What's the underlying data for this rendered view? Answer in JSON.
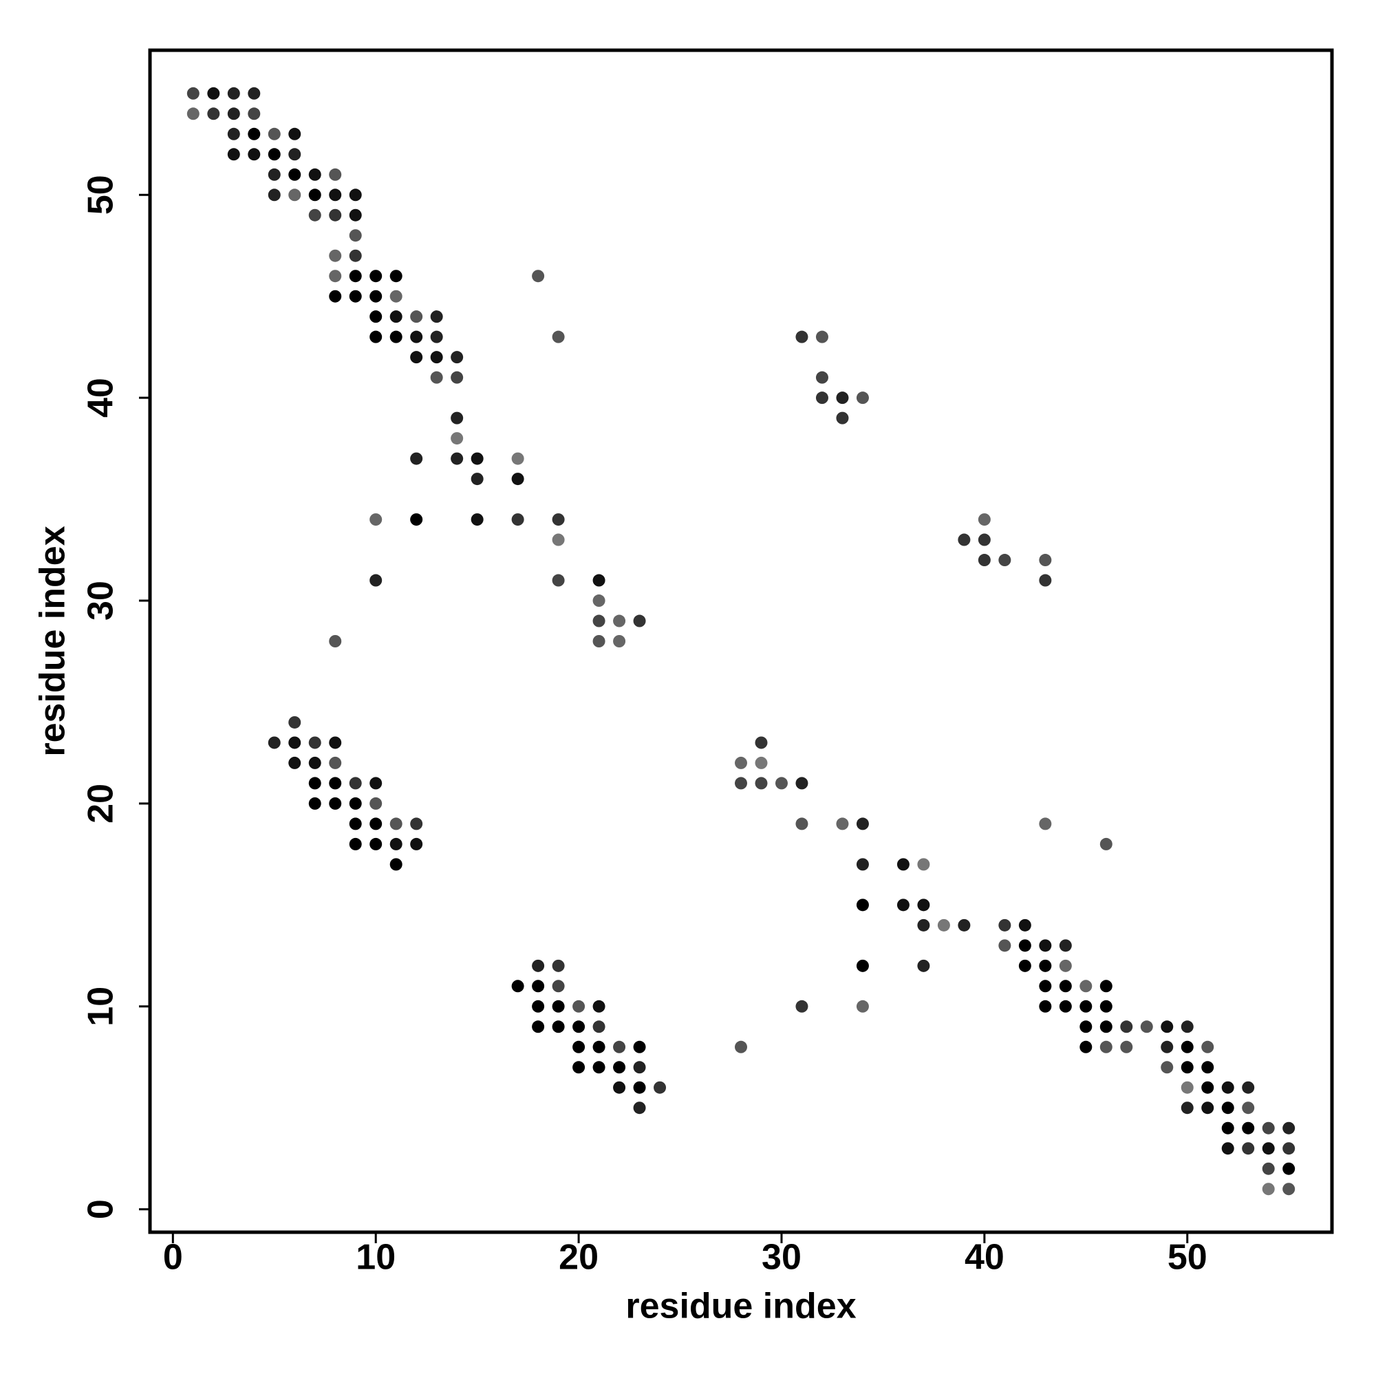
{
  "chart_data": {
    "type": "scatter",
    "x_label": "residue index",
    "y_label": "residue index",
    "xlim": [
      -1.13,
      57.13
    ],
    "ylim": [
      -1.13,
      57.13
    ],
    "xticks": [
      0,
      10,
      20,
      30,
      40,
      50
    ],
    "yticks": [
      0,
      10,
      20,
      30,
      40,
      50
    ],
    "x": [
      1,
      2,
      3,
      4,
      1,
      2,
      3,
      4,
      3,
      4,
      5,
      6,
      3,
      4,
      5,
      6,
      5,
      6,
      7,
      8,
      5,
      6,
      7,
      8,
      9,
      7,
      8,
      9,
      9,
      8,
      9,
      8,
      9,
      10,
      11,
      18,
      8,
      9,
      10,
      11,
      10,
      11,
      12,
      13,
      10,
      11,
      12,
      13,
      19,
      31,
      32,
      12,
      13,
      14,
      13,
      14,
      32,
      32,
      33,
      34,
      14,
      33,
      14,
      12,
      14,
      15,
      17,
      15,
      17,
      10,
      12,
      15,
      17,
      19,
      40,
      19,
      39,
      40,
      40,
      41,
      43,
      10,
      19,
      21,
      43,
      21,
      21,
      22,
      23,
      8,
      21,
      22,
      6,
      5,
      6,
      7,
      8,
      29,
      6,
      7,
      8,
      28,
      29,
      7,
      8,
      9,
      10,
      28,
      29,
      30,
      31,
      7,
      8,
      9,
      10,
      9,
      10,
      11,
      12,
      31,
      33,
      34,
      43,
      9,
      10,
      11,
      12,
      46,
      11,
      34,
      36,
      37,
      34,
      36,
      37,
      37,
      38,
      39,
      41,
      42,
      41,
      42,
      43,
      44,
      18,
      19,
      34,
      37,
      42,
      43,
      44,
      17,
      18,
      19,
      43,
      44,
      45,
      46,
      18,
      19,
      20,
      21,
      31,
      34,
      43,
      44,
      45,
      46,
      18,
      19,
      20,
      21,
      45,
      46,
      47,
      48,
      49,
      50,
      20,
      21,
      22,
      23,
      28,
      45,
      46,
      47,
      49,
      50,
      51,
      20,
      21,
      22,
      23,
      49,
      50,
      51,
      22,
      23,
      24,
      50,
      51,
      52,
      53,
      23,
      50,
      51,
      52,
      53,
      52,
      53,
      54,
      55,
      52,
      53,
      54,
      55,
      54,
      55,
      54,
      55
    ],
    "y": [
      55,
      55,
      55,
      55,
      54,
      54,
      54,
      54,
      53,
      53,
      53,
      53,
      52,
      52,
      52,
      52,
      51,
      51,
      51,
      51,
      50,
      50,
      50,
      50,
      50,
      49,
      49,
      49,
      48,
      47,
      47,
      46,
      46,
      46,
      46,
      46,
      45,
      45,
      45,
      45,
      44,
      44,
      44,
      44,
      43,
      43,
      43,
      43,
      43,
      43,
      43,
      42,
      42,
      42,
      41,
      41,
      41,
      40,
      40,
      40,
      39,
      39,
      38,
      37,
      37,
      37,
      37,
      36,
      36,
      34,
      34,
      34,
      34,
      34,
      34,
      33,
      33,
      33,
      32,
      32,
      32,
      31,
      31,
      31,
      31,
      30,
      29,
      29,
      29,
      28,
      28,
      28,
      24,
      23,
      23,
      23,
      23,
      23,
      22,
      22,
      22,
      22,
      22,
      21,
      21,
      21,
      21,
      21,
      21,
      21,
      21,
      20,
      20,
      20,
      20,
      19,
      19,
      19,
      19,
      19,
      19,
      19,
      19,
      18,
      18,
      18,
      18,
      18,
      17,
      17,
      17,
      17,
      15,
      15,
      15,
      14,
      14,
      14,
      14,
      14,
      13,
      13,
      13,
      13,
      12,
      12,
      12,
      12,
      12,
      12,
      12,
      11,
      11,
      11,
      11,
      11,
      11,
      11,
      10,
      10,
      10,
      10,
      10,
      10,
      10,
      10,
      10,
      10,
      9,
      9,
      9,
      9,
      9,
      9,
      9,
      9,
      9,
      9,
      8,
      8,
      8,
      8,
      8,
      8,
      8,
      8,
      8,
      8,
      8,
      7,
      7,
      7,
      7,
      7,
      7,
      7,
      6,
      6,
      6,
      6,
      6,
      6,
      6,
      5,
      5,
      5,
      5,
      5,
      4,
      4,
      4,
      4,
      3,
      3,
      3,
      3,
      2,
      2,
      1,
      1
    ],
    "colors": [
      "#444",
      "#111",
      "#222",
      "#222",
      "#666",
      "#333",
      "#222",
      "#444",
      "#222",
      "#000",
      "#555",
      "#111",
      "#111",
      "#111",
      "#000",
      "#222",
      "#222",
      "#000",
      "#111",
      "#555",
      "#222",
      "#666",
      "#000",
      "#111",
      "#111",
      "#444",
      "#333",
      "#111",
      "#555",
      "#666",
      "#333",
      "#666",
      "#000",
      "#000",
      "#000",
      "#555",
      "#000",
      "#000",
      "#000",
      "#666",
      "#000",
      "#111",
      "#555",
      "#222",
      "#000",
      "#000",
      "#111",
      "#222",
      "#555",
      "#333",
      "#555",
      "#111",
      "#111",
      "#222",
      "#555",
      "#444",
      "#444",
      "#333",
      "#222",
      "#555",
      "#222",
      "#333",
      "#777",
      "#222",
      "#222",
      "#111",
      "#777",
      "#222",
      "#111",
      "#666",
      "#000",
      "#111",
      "#333",
      "#333",
      "#666",
      "#777",
      "#333",
      "#333",
      "#333",
      "#444",
      "#555",
      "#222",
      "#444",
      "#111",
      "#333",
      "#666",
      "#444",
      "#666",
      "#333",
      "#555",
      "#555",
      "#666",
      "#333",
      "#222",
      "#111",
      "#333",
      "#111",
      "#333",
      "#111",
      "#111",
      "#555",
      "#666",
      "#777",
      "#000",
      "#000",
      "#333",
      "#111",
      "#444",
      "#444",
      "#555",
      "#222",
      "#000",
      "#000",
      "#000",
      "#555",
      "#000",
      "#000",
      "#555",
      "#333",
      "#555",
      "#666",
      "#222",
      "#666",
      "#000",
      "#000",
      "#111",
      "#111",
      "#555",
      "#000",
      "#222",
      "#111",
      "#777",
      "#000",
      "#111",
      "#111",
      "#222",
      "#777",
      "#222",
      "#333",
      "#111",
      "#555",
      "#000",
      "#111",
      "#222",
      "#222",
      "#333",
      "#000",
      "#222",
      "#000",
      "#000",
      "#666",
      "#000",
      "#000",
      "#444",
      "#000",
      "#000",
      "#666",
      "#000",
      "#000",
      "#000",
      "#555",
      "#111",
      "#333",
      "#666",
      "#000",
      "#000",
      "#000",
      "#000",
      "#000",
      "#000",
      "#000",
      "#333",
      "#000",
      "#000",
      "#333",
      "#555",
      "#111",
      "#222",
      "#000",
      "#000",
      "#444",
      "#000",
      "#555",
      "#000",
      "#555",
      "#555",
      "#222",
      "#000",
      "#555",
      "#000",
      "#000",
      "#000",
      "#222",
      "#555",
      "#000",
      "#000",
      "#111",
      "#000",
      "#333",
      "#777",
      "#000",
      "#111",
      "#222",
      "#222",
      "#222",
      "#111",
      "#000",
      "#555",
      "#000",
      "#000",
      "#444",
      "#222",
      "#111",
      "#333",
      "#111",
      "#333",
      "#444",
      "#000",
      "#777",
      "#555"
    ]
  }
}
